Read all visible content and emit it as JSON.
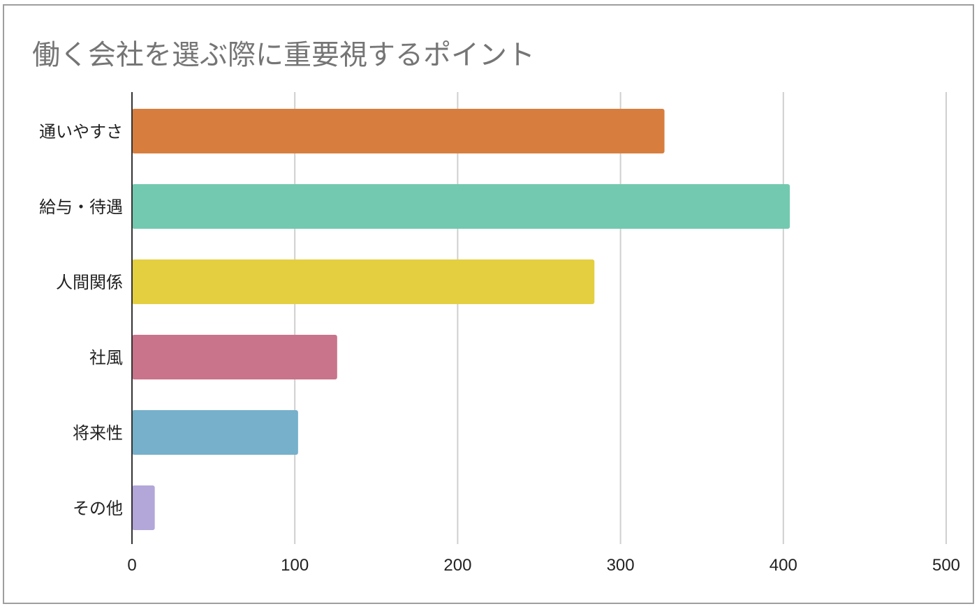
{
  "title": "働く会社を選ぶ際に重要視するポイント",
  "colors": {
    "grid": "#cfcfcf",
    "axis": "#333333",
    "border": "#9e9e9e",
    "title": "#757575"
  },
  "chart_data": {
    "type": "bar",
    "orientation": "horizontal",
    "title": "働く会社を選ぶ際に重要視するポイント",
    "xlabel": "",
    "ylabel": "",
    "categories": [
      "通いやすさ",
      "給与・待遇",
      "人間関係",
      "社風",
      "将来性",
      "その他"
    ],
    "values": [
      327,
      404,
      284,
      126,
      102,
      14
    ],
    "colors": [
      "#d77e3f",
      "#73c9b0",
      "#e4cf40",
      "#c9748b",
      "#76b0cb",
      "#b3a6d9"
    ],
    "xlim": [
      0,
      500
    ],
    "xticks": [
      0,
      100,
      200,
      300,
      400,
      500
    ],
    "grid": true,
    "legend": "none"
  }
}
